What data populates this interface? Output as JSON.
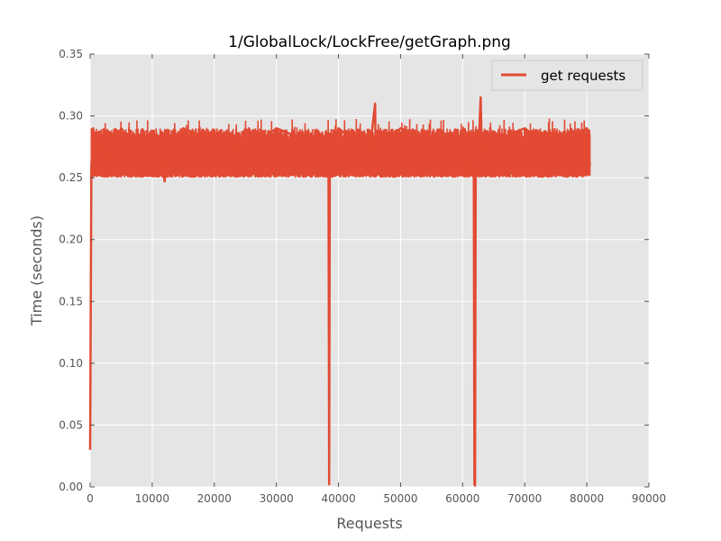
{
  "chart_data": {
    "type": "line",
    "title": "1/GlobalLock/LockFree/getGraph.png",
    "xlabel": "Requests",
    "ylabel": "Time (seconds)",
    "xlim": [
      0,
      90000
    ],
    "ylim": [
      0,
      0.35
    ],
    "x_ticks": [
      0,
      10000,
      20000,
      30000,
      40000,
      50000,
      60000,
      70000,
      80000,
      90000
    ],
    "y_ticks": [
      "0.00",
      "0.05",
      "0.10",
      "0.15",
      "0.20",
      "0.25",
      "0.30",
      "0.35"
    ],
    "grid": true,
    "legend_position": "top-right",
    "series": [
      {
        "name": "get requests",
        "color": "#e24a33",
        "x": [
          0,
          200,
          500,
          1000,
          2000,
          3000,
          5000,
          8000,
          11000,
          12000,
          12300,
          15000,
          20000,
          25000,
          30000,
          35000,
          38000,
          38400,
          38500,
          38600,
          38700,
          40000,
          45000,
          45900,
          46000,
          50000,
          55000,
          60000,
          61800,
          61900,
          62000,
          62100,
          62200,
          62700,
          62900,
          63100,
          65000,
          70000,
          75000,
          78000,
          80000,
          80500
        ],
        "y": [
          0.03,
          0.26,
          0.29,
          0.27,
          0.28,
          0.26,
          0.29,
          0.27,
          0.28,
          0.247,
          0.27,
          0.29,
          0.28,
          0.27,
          0.29,
          0.28,
          0.27,
          0.25,
          0.002,
          0.25,
          0.27,
          0.29,
          0.27,
          0.31,
          0.27,
          0.29,
          0.28,
          0.27,
          0.25,
          0.002,
          0.001,
          0.25,
          0.27,
          0.29,
          0.315,
          0.27,
          0.28,
          0.29,
          0.27,
          0.28,
          0.29,
          0.26
        ],
        "band": {
          "low": 0.25,
          "high": 0.29
        }
      }
    ]
  }
}
